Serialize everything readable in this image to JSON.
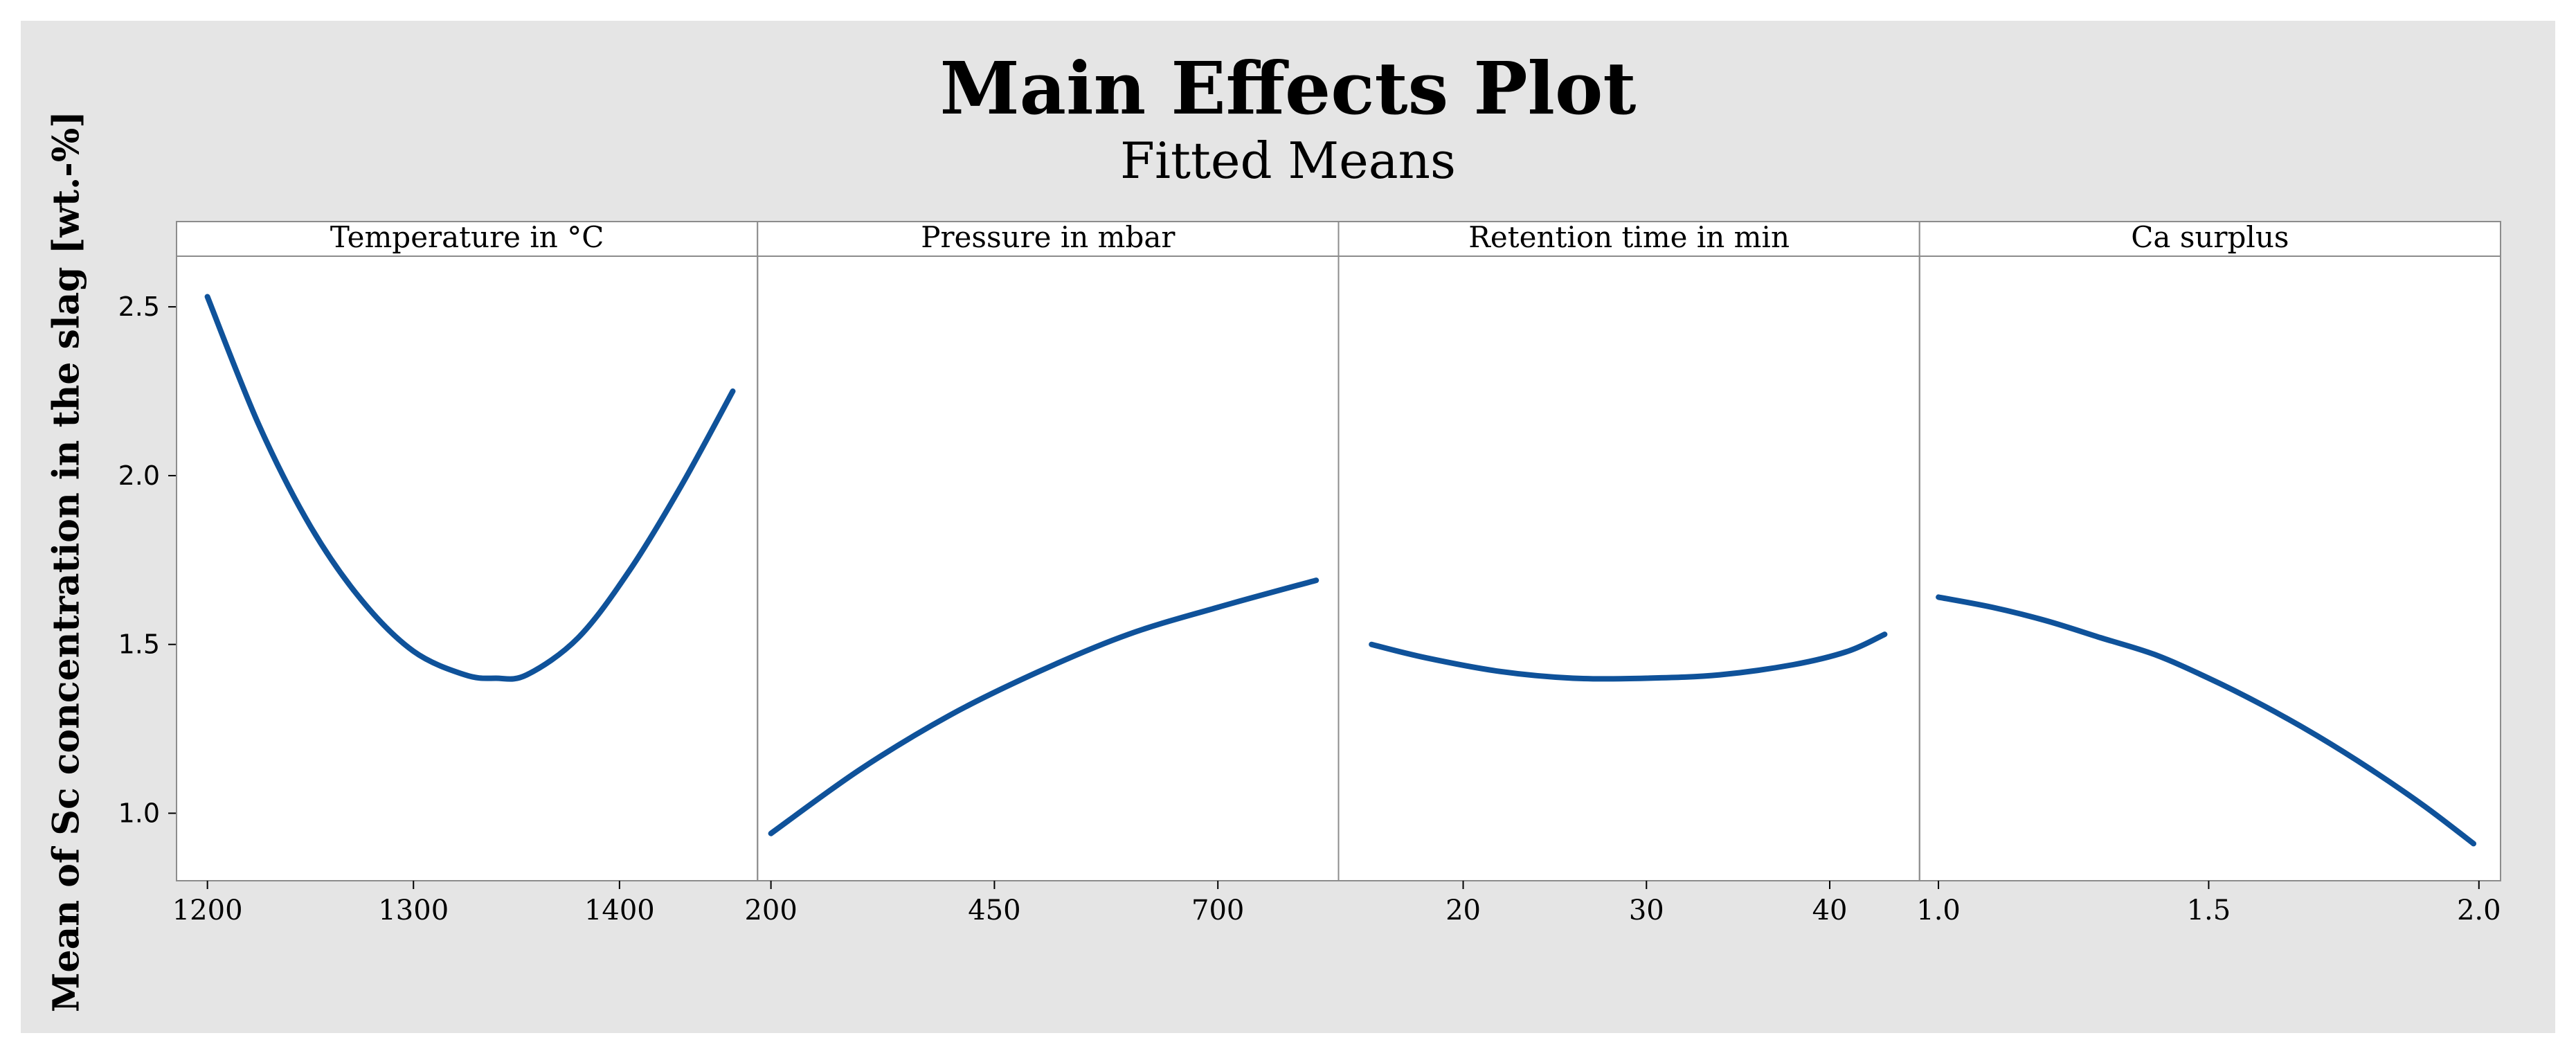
{
  "title": "Main Effects Plot",
  "subtitle": "Fitted Means",
  "colors": {
    "background": "#e5e5e5",
    "panel": "#ffffff",
    "line": "#0f529a",
    "frame": "#8c8c8c"
  },
  "chart_data": {
    "type": "line",
    "title": "Main Effects Plot",
    "subtitle": "Fitted Means",
    "ylabel": "Mean of Sc concentration in the slag [wt.-%]",
    "ylim": [
      0.8,
      2.65
    ],
    "yticks": [
      1.0,
      1.5,
      2.0,
      2.5
    ],
    "ytick_labels": [
      "1.0",
      "1.5",
      "2.0",
      "2.5"
    ],
    "grid": false,
    "panels": [
      {
        "name": "Temperature in °C",
        "xlim": [
          1185,
          1467
        ],
        "xticks": [
          1200,
          1300,
          1400
        ],
        "xtick_labels": [
          "1200",
          "1300",
          "1400"
        ],
        "x": [
          1200,
          1225,
          1250,
          1275,
          1300,
          1325,
          1340,
          1355,
          1380,
          1405,
          1430,
          1455
        ],
        "y": [
          2.53,
          2.15,
          1.85,
          1.63,
          1.48,
          1.41,
          1.4,
          1.41,
          1.52,
          1.72,
          1.97,
          2.25
        ]
      },
      {
        "name": "Pressure in mbar",
        "xlim": [
          185,
          835
        ],
        "xticks": [
          200,
          450,
          700
        ],
        "xtick_labels": [
          "200",
          "450",
          "700"
        ],
        "x": [
          200,
          300,
          400,
          500,
          600,
          700,
          810
        ],
        "y": [
          0.94,
          1.13,
          1.29,
          1.42,
          1.53,
          1.61,
          1.69
        ]
      },
      {
        "name": "Retention time in min",
        "xlim": [
          13.2,
          44.9
        ],
        "xticks": [
          20,
          30,
          40
        ],
        "xtick_labels": [
          "20",
          "30",
          "40"
        ],
        "x": [
          15,
          18,
          22,
          26,
          30,
          34,
          38,
          41,
          43
        ],
        "y": [
          1.5,
          1.46,
          1.42,
          1.4,
          1.4,
          1.41,
          1.44,
          1.48,
          1.53
        ]
      },
      {
        "name": "Ca surplus",
        "xlim": [
          0.965,
          2.04
        ],
        "xticks": [
          1.0,
          1.5,
          2.0
        ],
        "xtick_labels": [
          "1.0",
          "1.5",
          "2.0"
        ],
        "x": [
          1.0,
          1.1,
          1.2,
          1.3,
          1.4,
          1.5,
          1.6,
          1.7,
          1.8,
          1.9,
          1.99
        ],
        "y": [
          1.64,
          1.61,
          1.57,
          1.52,
          1.47,
          1.4,
          1.32,
          1.23,
          1.13,
          1.02,
          0.91
        ]
      }
    ]
  }
}
